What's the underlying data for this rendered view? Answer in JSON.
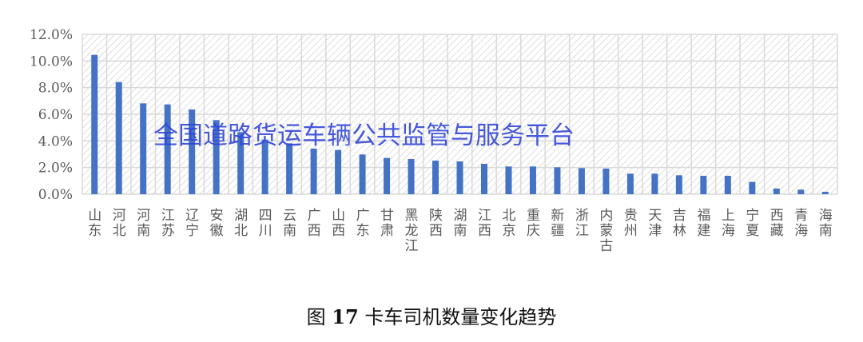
{
  "caption": {
    "prefix": "图",
    "number": "17",
    "title": "卡车司机数量变化趋势"
  },
  "watermark": "全国道路货运车辆公共监管与服务平台",
  "chart_data": {
    "type": "bar",
    "title": "",
    "xlabel": "",
    "ylabel": "",
    "ylim": [
      0,
      12
    ],
    "yticks": [
      "0.0%",
      "2.0%",
      "4.0%",
      "6.0%",
      "8.0%",
      "10.0%",
      "12.0%"
    ],
    "grid": true,
    "bar_color": "#4472c4",
    "categories": [
      "山东",
      "河北",
      "河南",
      "江苏",
      "辽宁",
      "安徽",
      "湖北",
      "四川",
      "云南",
      "广西",
      "山西",
      "广东",
      "甘肃",
      "黑龙江",
      "陕西",
      "湖南",
      "江西",
      "北京",
      "重庆",
      "新疆",
      "浙江",
      "内蒙古",
      "贵州",
      "天津",
      "吉林",
      "福建",
      "上海",
      "宁夏",
      "西藏",
      "青海",
      "海南"
    ],
    "values": [
      10.46,
      8.42,
      6.82,
      6.74,
      6.36,
      5.56,
      4.66,
      4.1,
      3.82,
      3.42,
      3.32,
      2.98,
      2.72,
      2.64,
      2.52,
      2.46,
      2.28,
      2.08,
      2.08,
      2.02,
      1.96,
      1.92,
      1.54,
      1.54,
      1.42,
      1.38,
      1.38,
      0.92,
      0.42,
      0.34,
      0.18
    ]
  }
}
